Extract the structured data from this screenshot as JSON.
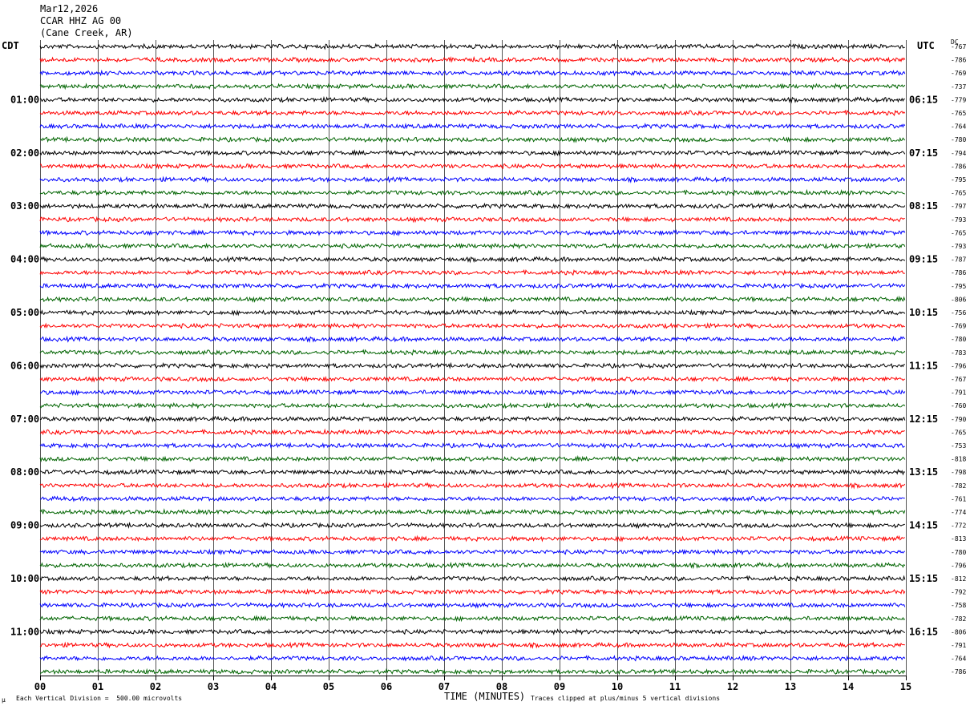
{
  "header": {
    "date": "Mar12,2026",
    "station": "CCAR HHZ AG 00",
    "location": "(Cane Creek, AR)"
  },
  "left_zone": "CDT",
  "right_zone": "UTC",
  "dc_header": "DC",
  "footer": {
    "scale_note": "Each Vertical Division =  500.00 microvolts",
    "clip_note": "Traces clipped at plus/minus 5 vertical divisions",
    "corner_mark": "µ"
  },
  "chart_data": {
    "type": "line",
    "title": "",
    "xlabel": "TIME (MINUTES)",
    "ylabel": "",
    "xlim": [
      0,
      15
    ],
    "x_ticks": [
      "00",
      "01",
      "02",
      "03",
      "04",
      "05",
      "06",
      "07",
      "08",
      "09",
      "10",
      "11",
      "12",
      "13",
      "14",
      "15"
    ],
    "grid": true,
    "trace_colors": [
      "#000000",
      "#ff0000",
      "#0000ff",
      "#006400"
    ],
    "rows_per_hour": 4,
    "left_hour_labels": [
      "01:00",
      "02:00",
      "03:00",
      "04:00",
      "05:00",
      "06:00",
      "07:00",
      "08:00",
      "09:00",
      "10:00",
      "11:00"
    ],
    "right_hour_labels": [
      "06:15",
      "07:15",
      "08:15",
      "09:15",
      "10:15",
      "11:15",
      "12:15",
      "13:15",
      "14:15",
      "15:15",
      "16:15"
    ],
    "dc_offsets": [
      "-767",
      "-786",
      "-769",
      "-737",
      "-779",
      "-765",
      "-764",
      "-780",
      "-794",
      "-786",
      "-795",
      "-765",
      "-797",
      "-793",
      "-765",
      "-793",
      "-787",
      "-786",
      "-795",
      "-806",
      "-756",
      "-769",
      "-780",
      "-783",
      "-796",
      "-767",
      "-791",
      "-760",
      "-790",
      "-765",
      "-753",
      "-818",
      "-798",
      "-782",
      "-761",
      "-774",
      "-772",
      "-813",
      "-780",
      "-796",
      "-812",
      "-792",
      "-758",
      "-782",
      "-806",
      "-791",
      "-764",
      "-786"
    ]
  }
}
